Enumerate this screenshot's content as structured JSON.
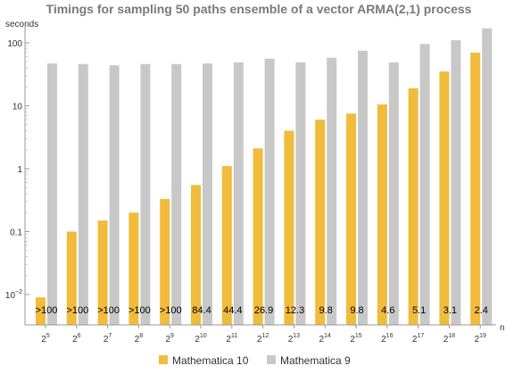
{
  "chart_data": {
    "type": "bar",
    "title": "Timings for sampling 50 paths ensemble of a vector ARMA(2,1) process",
    "ylabel": "seconds",
    "xlabel": "n",
    "yscale": "log",
    "ylim": [
      0.004,
      180
    ],
    "yticks": [
      {
        "value": 0.01,
        "base": "10",
        "exp": "−2"
      },
      {
        "value": 0.1,
        "label": "0.1"
      },
      {
        "value": 1,
        "label": "1"
      },
      {
        "value": 10,
        "label": "10"
      },
      {
        "value": 100,
        "label": "100"
      }
    ],
    "categories": [
      {
        "base": "2",
        "exp": "5"
      },
      {
        "base": "2",
        "exp": "6"
      },
      {
        "base": "2",
        "exp": "7"
      },
      {
        "base": "2",
        "exp": "8"
      },
      {
        "base": "2",
        "exp": "9"
      },
      {
        "base": "2",
        "exp": "10"
      },
      {
        "base": "2",
        "exp": "11"
      },
      {
        "base": "2",
        "exp": "12"
      },
      {
        "base": "2",
        "exp": "13"
      },
      {
        "base": "2",
        "exp": "14"
      },
      {
        "base": "2",
        "exp": "15"
      },
      {
        "base": "2",
        "exp": "16"
      },
      {
        "base": "2",
        "exp": "17"
      },
      {
        "base": "2",
        "exp": "18"
      },
      {
        "base": "2",
        "exp": "19"
      }
    ],
    "series": [
      {
        "name": "Mathematica 10",
        "color": "#f1bb3b",
        "values": [
          0.009,
          0.1,
          0.15,
          0.2,
          0.33,
          0.55,
          1.1,
          2.1,
          4.0,
          6.0,
          7.5,
          10.5,
          19,
          35,
          70
        ]
      },
      {
        "name": "Mathematica 9",
        "color": "#c8c8c8",
        "values": [
          47,
          46,
          44,
          46,
          46,
          47,
          49,
          56,
          49,
          58,
          75,
          49,
          96,
          110,
          170
        ]
      }
    ],
    "bar_labels": [
      ">100",
      ">100",
      ">100",
      ">100",
      ">100",
      "84.4",
      "44.4",
      "26.9",
      "12.3",
      "9.8",
      "9.8",
      "4.6",
      "5.1",
      "3.1",
      "2.4"
    ],
    "legend_position": "bottom-center",
    "grid": false
  }
}
